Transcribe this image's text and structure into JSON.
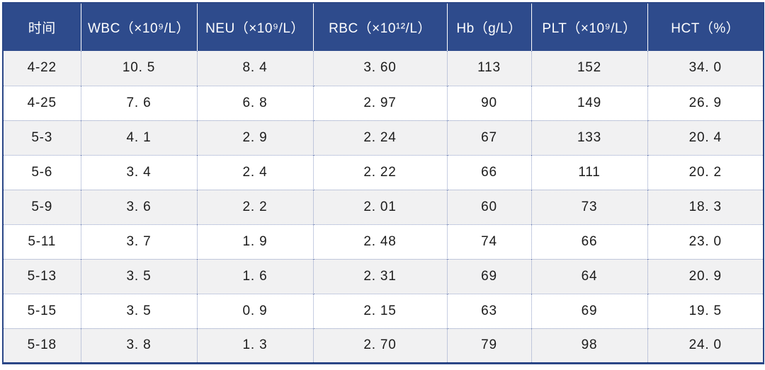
{
  "chart_data": {
    "type": "table",
    "columns": [
      "时间",
      "WBC（×10⁹/L）",
      "NEU（×10⁹/L）",
      "RBC（×10¹²/L）",
      "Hb（g/L）",
      "PLT（×10⁹/L）",
      "HCT（%）"
    ],
    "rows": [
      [
        "4-22",
        "10. 5",
        "8. 4",
        "3. 60",
        "113",
        "152",
        "34. 0"
      ],
      [
        "4-25",
        "7. 6",
        "6. 8",
        "2. 97",
        "90",
        "149",
        "26. 9"
      ],
      [
        "5-3",
        "4. 1",
        "2. 9",
        "2. 24",
        "67",
        "133",
        "20. 4"
      ],
      [
        "5-6",
        "3. 4",
        "2. 4",
        "2. 22",
        "66",
        "111",
        "20. 2"
      ],
      [
        "5-9",
        "3. 6",
        "2. 2",
        "2. 01",
        "60",
        "73",
        "18. 3"
      ],
      [
        "5-11",
        "3. 7",
        "1. 9",
        "2. 48",
        "74",
        "66",
        "23. 0"
      ],
      [
        "5-13",
        "3. 5",
        "1. 6",
        "2. 31",
        "69",
        "64",
        "20. 9"
      ],
      [
        "5-15",
        "3. 5",
        "0. 9",
        "2. 15",
        "63",
        "69",
        "19. 5"
      ],
      [
        "5-18",
        "3. 8",
        "1. 3",
        "2. 70",
        "79",
        "98",
        "24. 0"
      ]
    ],
    "layout": {
      "header_position": "top",
      "grid": "dotted",
      "row_striping": "odd-rows-shaded"
    }
  },
  "colors": {
    "header_bg": "#2e4b8c",
    "header_text": "#ffffff",
    "outer_border": "#2b4787",
    "grid_dotted": "#8e9cc4",
    "row_alt_bg": "#f1f1f2",
    "body_text": "#1c1c1c"
  }
}
